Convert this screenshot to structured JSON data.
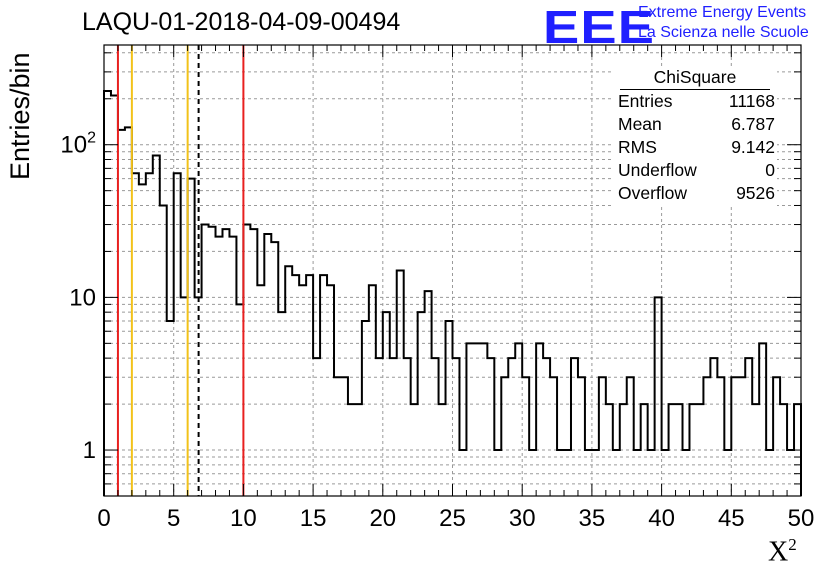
{
  "header": {
    "title": "LAQU-01-2018-04-09-00494",
    "logo_text": "EEE",
    "logo_line1": "Extreme Energy Events",
    "logo_line2": "La Scienza nelle Scuole"
  },
  "stats_box": {
    "title": "ChiSquare",
    "rows": [
      {
        "label": "Entries",
        "value": "11168"
      },
      {
        "label": "Mean",
        "value": "6.787"
      },
      {
        "label": "RMS",
        "value": "9.142"
      },
      {
        "label": "Underflow",
        "value": "0"
      },
      {
        "label": "Overflow",
        "value": "9526"
      }
    ]
  },
  "chart_data": {
    "type": "histogram",
    "title": "LAQU-01-2018-04-09-00494",
    "xlabel": "X²",
    "xlabel_base": "X",
    "xlabel_sup": "2",
    "ylabel": "Entries/bin",
    "xlim": [
      0,
      50
    ],
    "ylim": [
      0.5,
      450
    ],
    "y_scale": "log",
    "grid": true,
    "bin_width": 0.5,
    "x_ticks": [
      "0",
      "5",
      "10",
      "15",
      "20",
      "25",
      "30",
      "35",
      "40",
      "45",
      "50"
    ],
    "y_ticks": [
      {
        "value": 1,
        "label": "1"
      },
      {
        "value": 10,
        "label": "10"
      },
      {
        "value": 100,
        "label": "10",
        "exponent": "2"
      }
    ],
    "values": [
      225,
      210,
      125,
      130,
      65,
      55,
      65,
      85,
      40,
      7,
      65,
      10,
      60,
      10,
      30,
      29,
      25,
      28,
      25,
      9,
      30,
      28,
      12,
      26,
      23,
      8,
      16,
      14,
      12,
      14,
      4,
      14,
      12,
      3,
      3,
      2,
      2,
      7,
      12,
      4,
      8,
      4,
      15,
      4,
      2,
      8,
      11,
      4,
      2,
      7,
      4,
      1,
      5,
      5,
      5,
      4,
      1,
      3,
      4,
      5,
      3,
      1,
      5,
      4,
      3,
      1,
      1,
      4,
      3,
      1,
      1,
      3,
      2,
      1,
      2,
      3,
      1,
      2,
      1,
      10,
      1,
      2,
      2,
      1,
      2,
      2,
      3,
      4,
      3,
      1,
      3,
      3,
      4,
      2,
      5,
      1,
      3,
      2,
      1,
      2
    ],
    "vertical_lines": [
      {
        "x": 1,
        "color": "#e8201f",
        "style": "solid"
      },
      {
        "x": 2,
        "color": "#f2c21a",
        "style": "solid"
      },
      {
        "x": 6,
        "color": "#f2c21a",
        "style": "solid"
      },
      {
        "x": 6.787,
        "color": "#000000",
        "style": "dashed"
      },
      {
        "x": 10,
        "color": "#e8201f",
        "style": "solid"
      }
    ]
  }
}
